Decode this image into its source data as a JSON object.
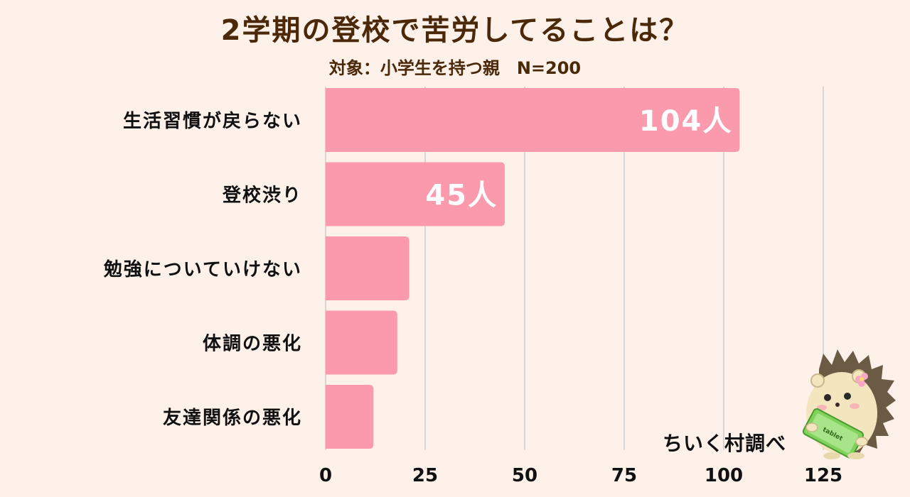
{
  "header": {
    "title": "2学期の登校で苦労してることは？",
    "subtitle": "対象：小学生を持つ親　N=200"
  },
  "brand": {
    "label": "ちいく村調べ",
    "mascot_tablet_text": "tablet"
  },
  "colors": {
    "background": "#fdf1ea",
    "bar": "#fc9aad",
    "title": "#4a2808",
    "grid": "#cccccc"
  },
  "chart_data": {
    "type": "bar",
    "orientation": "horizontal",
    "title": "2学期の登校で苦労してることは？",
    "subtitle": "対象：小学生を持つ親　N=200",
    "categories": [
      "生活習慣が戻らない",
      "登校渋り",
      "勉強についていけない",
      "体調の悪化",
      "友達関係の悪化"
    ],
    "values": [
      104,
      45,
      21,
      18,
      12
    ],
    "data_labels": [
      "104人",
      "45人",
      "",
      "",
      ""
    ],
    "xlim": [
      0,
      125
    ],
    "xticks": [
      0,
      25,
      50,
      75,
      100,
      125
    ],
    "grid": true
  }
}
